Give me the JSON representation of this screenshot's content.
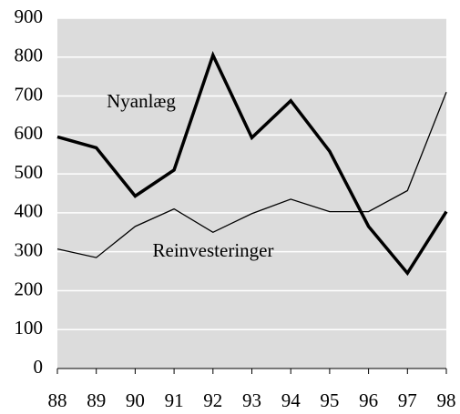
{
  "chart_data": {
    "type": "line",
    "categories": [
      "88",
      "89",
      "90",
      "91",
      "92",
      "93",
      "94",
      "95",
      "96",
      "97",
      "98"
    ],
    "series": [
      {
        "name": "Nyanlæg",
        "color": "#000000",
        "values": [
          595,
          567,
          443,
          510,
          805,
          593,
          688,
          558,
          365,
          245,
          403
        ]
      },
      {
        "name": "Reinvesteringer",
        "color": "#000000",
        "values": [
          307,
          285,
          365,
          410,
          350,
          398,
          435,
          403,
          403,
          457,
          710
        ]
      }
    ],
    "ylim": [
      0,
      900
    ],
    "yticks": [
      0,
      100,
      200,
      300,
      400,
      500,
      600,
      700,
      800,
      900
    ],
    "grid": true
  }
}
